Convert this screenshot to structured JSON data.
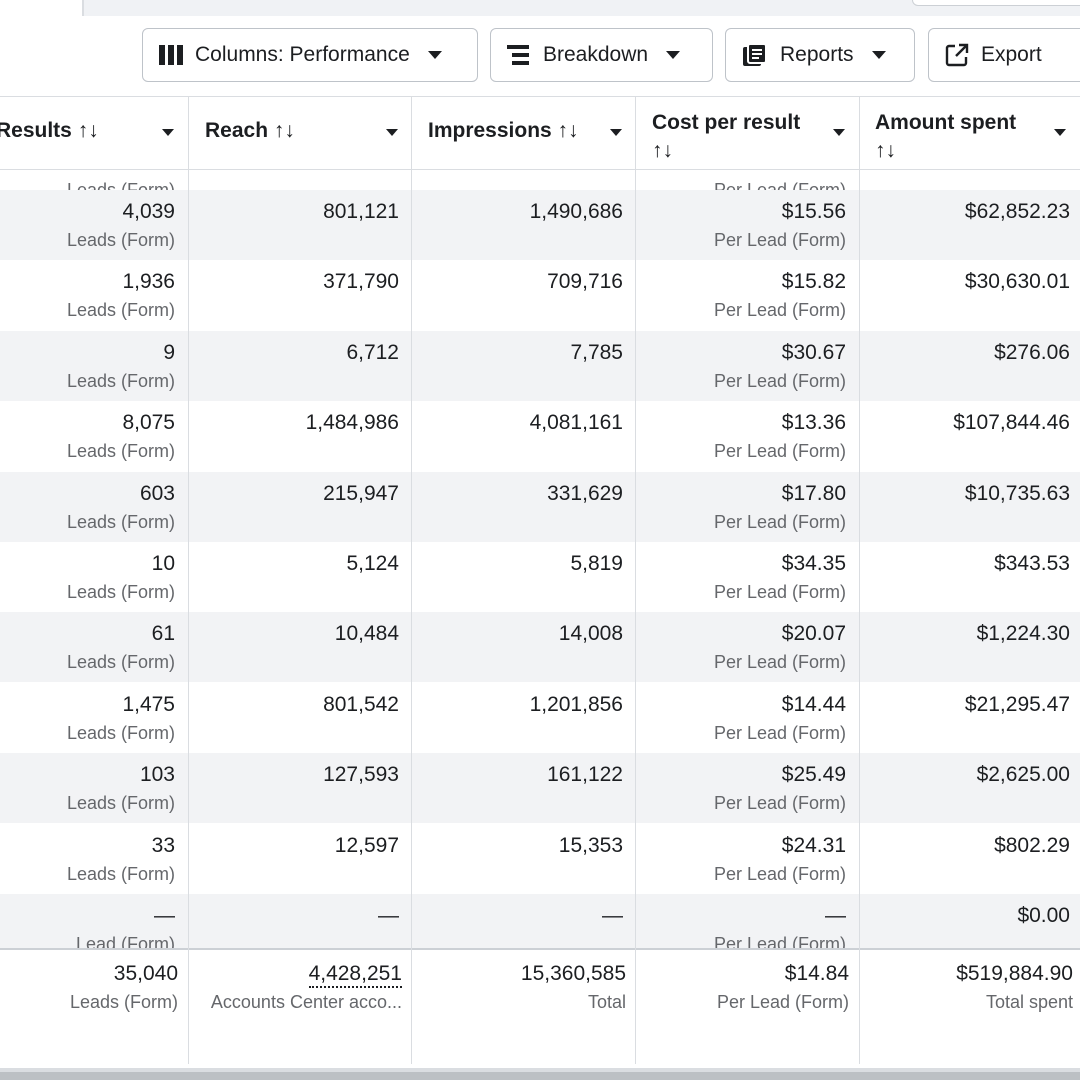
{
  "toolbar": {
    "columns_label": "Columns: Performance",
    "breakdown_label": "Breakdown",
    "reports_label": "Reports",
    "export_label": "Export",
    "icons": [
      "columns-icon",
      "breakdown-icon",
      "reports-icon",
      "export-icon"
    ]
  },
  "headers": {
    "results": "Results ↑↓",
    "reach": "Reach ↑↓",
    "impressions": "Impressions ↑↓",
    "cost_per_result": "Cost per result",
    "cost_per_result_sort": "↑↓",
    "amount_spent": "Amount spent",
    "amount_spent_sort": "↑↓"
  },
  "partial_top": {
    "results_sub": "Leads (Form)",
    "cost_sub": "Per Lead (Form)"
  },
  "rows": [
    {
      "results": "4,039",
      "results_sub": "Leads (Form)",
      "reach": "801,121",
      "impressions": "1,490,686",
      "cost": "$15.56",
      "cost_sub": "Per Lead (Form)",
      "spent": "$62,852.23"
    },
    {
      "results": "1,936",
      "results_sub": "Leads (Form)",
      "reach": "371,790",
      "impressions": "709,716",
      "cost": "$15.82",
      "cost_sub": "Per Lead (Form)",
      "spent": "$30,630.01"
    },
    {
      "results": "9",
      "results_sub": "Leads (Form)",
      "reach": "6,712",
      "impressions": "7,785",
      "cost": "$30.67",
      "cost_sub": "Per Lead (Form)",
      "spent": "$276.06"
    },
    {
      "results": "8,075",
      "results_sub": "Leads (Form)",
      "reach": "1,484,986",
      "impressions": "4,081,161",
      "cost": "$13.36",
      "cost_sub": "Per Lead (Form)",
      "spent": "$107,844.46"
    },
    {
      "results": "603",
      "results_sub": "Leads (Form)",
      "reach": "215,947",
      "impressions": "331,629",
      "cost": "$17.80",
      "cost_sub": "Per Lead (Form)",
      "spent": "$10,735.63"
    },
    {
      "results": "10",
      "results_sub": "Leads (Form)",
      "reach": "5,124",
      "impressions": "5,819",
      "cost": "$34.35",
      "cost_sub": "Per Lead (Form)",
      "spent": "$343.53"
    },
    {
      "results": "61",
      "results_sub": "Leads (Form)",
      "reach": "10,484",
      "impressions": "14,008",
      "cost": "$20.07",
      "cost_sub": "Per Lead (Form)",
      "spent": "$1,224.30"
    },
    {
      "results": "1,475",
      "results_sub": "Leads (Form)",
      "reach": "801,542",
      "impressions": "1,201,856",
      "cost": "$14.44",
      "cost_sub": "Per Lead (Form)",
      "spent": "$21,295.47"
    },
    {
      "results": "103",
      "results_sub": "Leads (Form)",
      "reach": "127,593",
      "impressions": "161,122",
      "cost": "$25.49",
      "cost_sub": "Per Lead (Form)",
      "spent": "$2,625.00"
    },
    {
      "results": "33",
      "results_sub": "Leads (Form)",
      "reach": "12,597",
      "impressions": "15,353",
      "cost": "$24.31",
      "cost_sub": "Per Lead (Form)",
      "spent": "$802.29"
    },
    {
      "results": "—",
      "results_sub": "Lead (Form)",
      "reach": "—",
      "impressions": "—",
      "cost": "—",
      "cost_sub": "Per Lead (Form)",
      "spent": "$0.00"
    }
  ],
  "totals": {
    "results": "35,040",
    "results_sub": "Leads (Form)",
    "reach": "4,428,251",
    "reach_sub": "Accounts Center acco...",
    "impressions": "15,360,585",
    "impressions_sub": "Total",
    "cost": "$14.84",
    "cost_sub": "Per Lead (Form)",
    "spent": "$519,884.90",
    "spent_sub": "Total spent"
  }
}
